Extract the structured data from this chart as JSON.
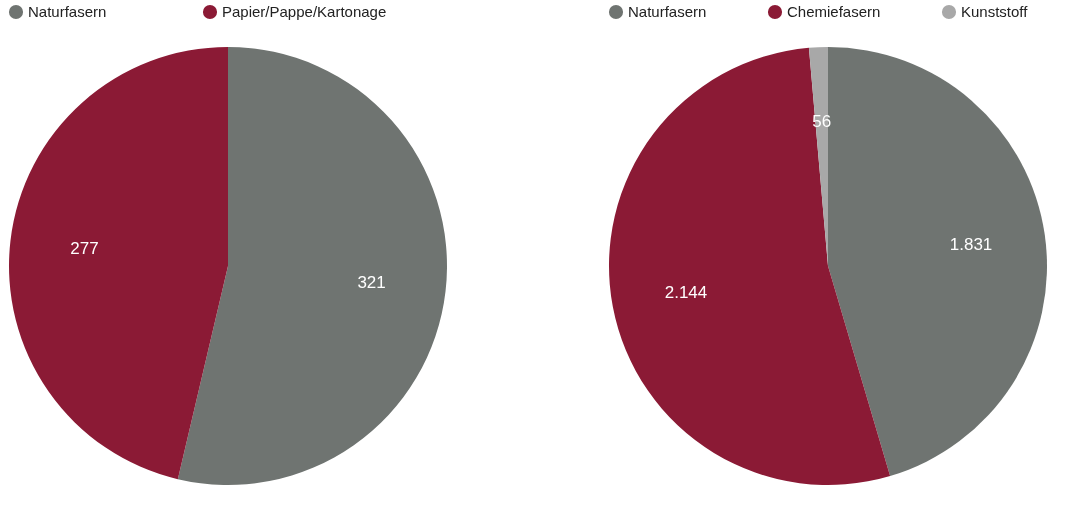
{
  "chart_data": [
    {
      "type": "pie",
      "categories": [
        "Naturfasern",
        "Papier/Pappe/Kartonage"
      ],
      "values": [
        321,
        277
      ],
      "colors": [
        "#6f7471",
        "#8b1a35"
      ],
      "value_labels": [
        "321",
        "277"
      ],
      "legend": "top"
    },
    {
      "type": "pie",
      "categories": [
        "Naturfasern",
        "Chemiefasern",
        "Kunststoff"
      ],
      "values": [
        1831,
        2144,
        56
      ],
      "colors": [
        "#6f7471",
        "#8b1a35",
        "#a8a8a8"
      ],
      "value_labels": [
        "1.831",
        "2.144",
        "56"
      ],
      "legend": "top"
    }
  ]
}
